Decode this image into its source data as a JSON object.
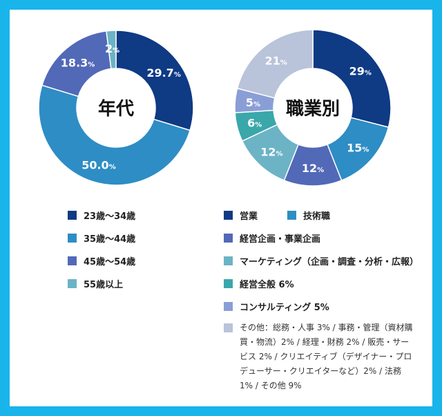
{
  "colors": {
    "frame": "#19b4ea",
    "navy": "#0f3a84",
    "teal_blue": "#2e8dc4",
    "indigo": "#5269b8",
    "light_teal": "#6cb3c6",
    "sea_green": "#3aa7ab",
    "periwinkle": "#8a9ed6",
    "pale_blue": "#b9c3da"
  },
  "chart_data": [
    {
      "type": "pie",
      "variant": "donut",
      "center_label": "年代",
      "start_angle_deg": 0,
      "slices": [
        {
          "name": "23歳〜34歳",
          "value": 29.7,
          "label_num": "29.7",
          "label_unit": "%",
          "color": "#0f3a84"
        },
        {
          "name": "35歳〜44歳",
          "value": 50.0,
          "label_num": "50.0",
          "label_unit": "%",
          "color": "#2e8dc4"
        },
        {
          "name": "45歳〜54歳",
          "value": 18.3,
          "label_num": "18.3",
          "label_unit": "%",
          "color": "#5269b8"
        },
        {
          "name": "55歳以上",
          "value": 2,
          "label_num": "2",
          "label_unit": "%",
          "color": "#6cb3c6"
        }
      ]
    },
    {
      "type": "pie",
      "variant": "donut",
      "center_label": "職業別",
      "start_angle_deg": 0,
      "slices": [
        {
          "name": "営業",
          "value": 29,
          "label_num": "29",
          "label_unit": "%",
          "color": "#0f3a84"
        },
        {
          "name": "技術職",
          "value": 15,
          "label_num": "15",
          "label_unit": "%",
          "color": "#2e8dc4"
        },
        {
          "name": "経営企画・事業企画",
          "value": 12,
          "label_num": "12",
          "label_unit": "%",
          "color": "#5269b8"
        },
        {
          "name": "マーケティング（企画・調査・分析・広報）",
          "value": 12,
          "label_num": "12",
          "label_unit": "%",
          "color": "#6cb3c6"
        },
        {
          "name": "経営全般",
          "value": 6,
          "label_num": "6",
          "label_unit": "%",
          "color": "#3aa7ab"
        },
        {
          "name": "コンサルティング",
          "value": 5,
          "label_num": "5",
          "label_unit": "%",
          "color": "#8a9ed6"
        },
        {
          "name": "その他",
          "value": 21,
          "label_num": "21",
          "label_unit": "%",
          "color": "#b9c3da"
        }
      ]
    }
  ],
  "legend_age": [
    {
      "label": "23歳〜34歳",
      "color": "#0f3a84"
    },
    {
      "label": "35歳〜44歳",
      "color": "#2e8dc4"
    },
    {
      "label": "45歳〜54歳",
      "color": "#5269b8"
    },
    {
      "label": "55歳以上",
      "color": "#6cb3c6"
    }
  ],
  "legend_job": {
    "sales": "営業",
    "engineering": "技術職",
    "planning": "経営企画・事業企画",
    "marketing": "マーケティング（企画・調査・分析・広報）",
    "management": "経営全般 6%",
    "consulting": "コンサルティング 5%",
    "other": "その他：総務・人事 3% / 事務・管理（資材購買・物流）2% / 経理・財務 2% / 販売・サービス 2% / クリエイティブ（デザイナー・プロデューサー・クリエイターなど）2% / 法務 1% / その他 9%"
  }
}
